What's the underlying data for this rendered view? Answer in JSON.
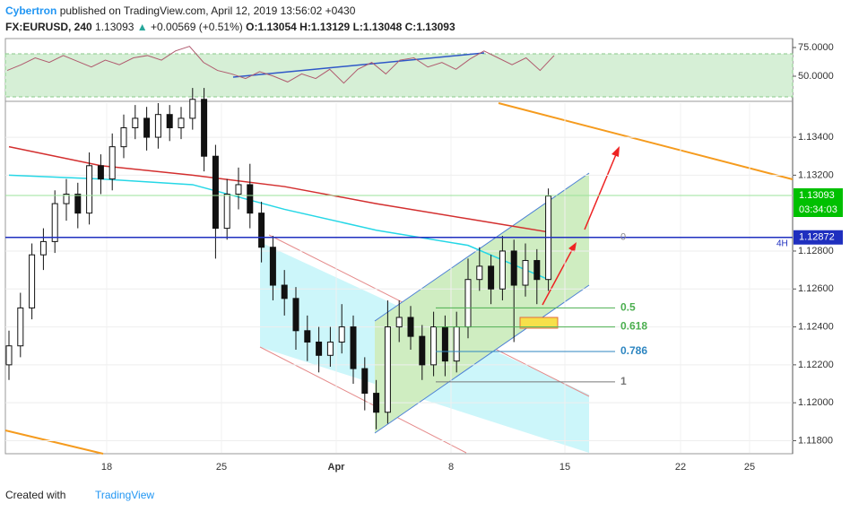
{
  "header": {
    "author": "Cybertron",
    "published": "published on TradingView.com, April 12, 2019 13:56:02 +0430",
    "symbol": "FX:EURUSD, 240",
    "last": "1.13093",
    "change": "+0.00569 (+0.51%)",
    "open": "O:1.13054",
    "high": "H:1.13129",
    "low": "L:1.13048",
    "close": "C:1.13093"
  },
  "chart_data": [
    {
      "type": "candlestick",
      "ylim": [
        1.11736,
        1.1358
      ],
      "yticks": [
        {
          "value": 1.134,
          "label": "1.13400"
        },
        {
          "value": 1.132,
          "label": "1.13200"
        },
        {
          "value": 1.128,
          "label": "1.12800"
        },
        {
          "value": 1.126,
          "label": "1.12600"
        },
        {
          "value": 1.124,
          "label": "1.12400"
        },
        {
          "value": 1.122,
          "label": "1.12200"
        },
        {
          "value": 1.12,
          "label": "1.12000"
        },
        {
          "value": 1.118,
          "label": "1.11800"
        }
      ],
      "xticks": [
        "18",
        "25",
        "Apr",
        "8",
        "15",
        "22",
        "25"
      ],
      "candles": [
        [
          1.122,
          1.1238,
          1.1212,
          1.123
        ],
        [
          1.123,
          1.1258,
          1.1224,
          1.125
        ],
        [
          1.125,
          1.1284,
          1.1244,
          1.1278
        ],
        [
          1.1278,
          1.1292,
          1.127,
          1.1285
        ],
        [
          1.1285,
          1.1312,
          1.1279,
          1.1305
        ],
        [
          1.1305,
          1.1318,
          1.1296,
          1.131
        ],
        [
          1.131,
          1.1316,
          1.1292,
          1.13
        ],
        [
          1.13,
          1.1332,
          1.1294,
          1.1325
        ],
        [
          1.1325,
          1.1331,
          1.131,
          1.1318
        ],
        [
          1.1318,
          1.1342,
          1.1312,
          1.1335
        ],
        [
          1.1335,
          1.1352,
          1.1329,
          1.1345
        ],
        [
          1.1345,
          1.1357,
          1.1339,
          1.135
        ],
        [
          1.135,
          1.1356,
          1.1333,
          1.134
        ],
        [
          1.134,
          1.1358,
          1.1334,
          1.1352
        ],
        [
          1.1352,
          1.1357,
          1.1338,
          1.1345
        ],
        [
          1.1345,
          1.1356,
          1.1339,
          1.135
        ],
        [
          1.135,
          1.1366,
          1.1344,
          1.136
        ],
        [
          1.136,
          1.1366,
          1.1322,
          1.133
        ],
        [
          1.133,
          1.1336,
          1.1276,
          1.1292
        ],
        [
          1.1292,
          1.1318,
          1.1286,
          1.131
        ],
        [
          1.131,
          1.1324,
          1.1302,
          1.1315
        ],
        [
          1.1315,
          1.1326,
          1.1292,
          1.13
        ],
        [
          1.13,
          1.1306,
          1.1274,
          1.1282
        ],
        [
          1.1282,
          1.1288,
          1.1254,
          1.1262
        ],
        [
          1.1262,
          1.127,
          1.1246,
          1.1255
        ],
        [
          1.1255,
          1.1261,
          1.1228,
          1.1238
        ],
        [
          1.1238,
          1.1246,
          1.1222,
          1.1232
        ],
        [
          1.1232,
          1.124,
          1.1216,
          1.1225
        ],
        [
          1.1225,
          1.124,
          1.1219,
          1.1232
        ],
        [
          1.1232,
          1.1252,
          1.1226,
          1.124
        ],
        [
          1.124,
          1.1246,
          1.121,
          1.1218
        ],
        [
          1.1218,
          1.1224,
          1.1196,
          1.1205
        ],
        [
          1.1205,
          1.1212,
          1.1186,
          1.1195
        ],
        [
          1.1195,
          1.1254,
          1.1189,
          1.124
        ],
        [
          1.124,
          1.1254,
          1.1232,
          1.1245
        ],
        [
          1.1245,
          1.1251,
          1.1228,
          1.1235
        ],
        [
          1.1235,
          1.1241,
          1.1212,
          1.122
        ],
        [
          1.122,
          1.1248,
          1.1214,
          1.124
        ],
        [
          1.124,
          1.1246,
          1.1214,
          1.1222
        ],
        [
          1.1222,
          1.1248,
          1.1216,
          1.124
        ],
        [
          1.124,
          1.1276,
          1.1234,
          1.1265
        ],
        [
          1.1265,
          1.1282,
          1.1259,
          1.1272
        ],
        [
          1.1272,
          1.1278,
          1.1252,
          1.126
        ],
        [
          1.126,
          1.1288,
          1.1254,
          1.128
        ],
        [
          1.128,
          1.1286,
          1.1232,
          1.1262
        ],
        [
          1.1262,
          1.1284,
          1.1256,
          1.1275
        ],
        [
          1.1275,
          1.1281,
          1.1252,
          1.1265
        ],
        [
          1.1265,
          1.1313,
          1.1259,
          1.1309
        ]
      ],
      "ma_long": {
        "color": "#d32f2f",
        "indices": [
          0,
          8,
          16,
          24,
          32,
          40,
          47
        ],
        "values": [
          1.1335,
          1.1325,
          1.132,
          1.1314,
          1.1305,
          1.1297,
          1.129
        ]
      },
      "ma_short": {
        "color": "#26d7e6",
        "indices": [
          0,
          8,
          16,
          24,
          32,
          40,
          47
        ],
        "values": [
          1.132,
          1.1318,
          1.1315,
          1.1302,
          1.1291,
          1.1283,
          1.1265
        ]
      },
      "last_price": {
        "value": 1.13093,
        "label": "1.13093"
      },
      "countdown": "03:34:03",
      "hline": {
        "value": 1.12872,
        "label": "1.12872",
        "interval": "4H",
        "level": "0"
      },
      "fib": [
        {
          "label": "0.5",
          "value": 1.125,
          "color": "#4caf50"
        },
        {
          "label": "0.618",
          "value": 1.124,
          "color": "#4caf50"
        },
        {
          "label": "0.786",
          "value": 1.1227,
          "color": "#2e86c1"
        },
        {
          "label": "1",
          "value": 1.1211,
          "color": "#777777"
        }
      ]
    },
    {
      "type": "line",
      "ylim": [
        28.9,
        82.8
      ],
      "yticks": [
        {
          "value": 75,
          "label": "75.0000"
        },
        {
          "value": 50,
          "label": "50.0000"
        }
      ],
      "color": "#b05a6e",
      "values": [
        55,
        60,
        66,
        62,
        68,
        63,
        58,
        64,
        60,
        66,
        68,
        64,
        72,
        76,
        62,
        55,
        52,
        48,
        54,
        50,
        45,
        52,
        48,
        56,
        44,
        56,
        62,
        52,
        64,
        66,
        58,
        62,
        56,
        65,
        72,
        66,
        60,
        66,
        55,
        68
      ]
    }
  ],
  "footer": {
    "created": "Created with",
    "brand": "TradingView"
  }
}
